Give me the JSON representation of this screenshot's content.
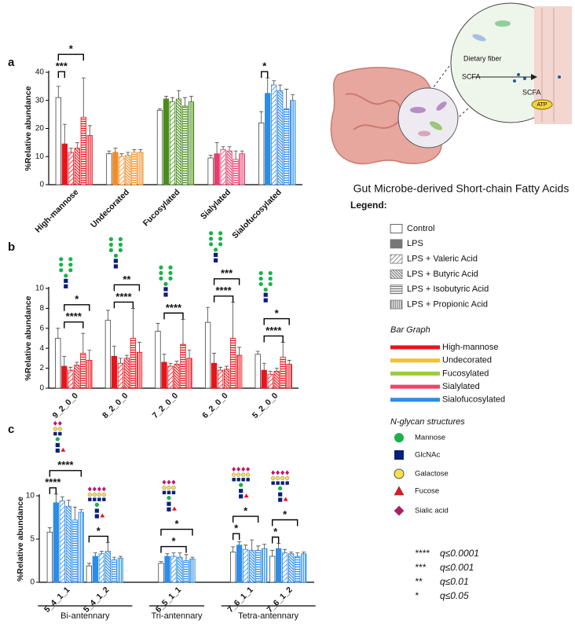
{
  "chart_data": [
    {
      "type": "bar",
      "label": "a",
      "ylabel": "%Relative abundance",
      "categories": [
        "High-mannose",
        "Undecorated",
        "Fucosylated",
        "Sialylated",
        "Sialofucosylated"
      ],
      "colors": [
        "#e8141c",
        "#f28c28",
        "#4a8c1c",
        "#e83c6c",
        "#2d8ce8"
      ],
      "ylim": [
        0,
        40
      ],
      "yticks": [
        0,
        10,
        20,
        30,
        40
      ],
      "series": [
        {
          "name": "Control",
          "pattern": "none",
          "values": [
            31,
            11,
            26.5,
            9.5,
            22
          ],
          "errors": [
            4,
            1,
            0.5,
            1,
            4
          ]
        },
        {
          "name": "LPS",
          "pattern": "solid",
          "values": [
            14.5,
            11.5,
            30.5,
            11,
            32.5
          ],
          "errors": [
            7,
            1.5,
            1,
            4,
            5.5
          ]
        },
        {
          "name": "LPS + Valeric Acid",
          "pattern": "diagonal-light",
          "values": [
            11.5,
            10,
            29.5,
            12.5,
            35.5
          ],
          "errors": [
            1.5,
            1,
            1.5,
            1,
            1.5
          ]
        },
        {
          "name": "LPS + Butyric Acid",
          "pattern": "diagonal",
          "values": [
            13,
            10.5,
            30.5,
            12,
            33.5
          ],
          "errors": [
            2,
            1,
            3,
            1.5,
            2
          ]
        },
        {
          "name": "LPS + Isobutyric Acid",
          "pattern": "horizontal",
          "values": [
            24,
            11.5,
            28,
            9,
            27
          ],
          "errors": [
            14,
            1,
            3,
            3,
            7
          ]
        },
        {
          "name": "LPS + Propionic Acid",
          "pattern": "vertical",
          "values": [
            17.5,
            11.5,
            29.5,
            11,
            30
          ],
          "errors": [
            3.5,
            1,
            2,
            1,
            2
          ]
        }
      ],
      "significance": [
        {
          "label": "***",
          "category": 0,
          "from": 0,
          "to": 1
        },
        {
          "label": "*",
          "category": 0,
          "from": 0,
          "to": 4
        },
        {
          "label": "*",
          "category": 4,
          "from": 0,
          "to": 1
        }
      ]
    },
    {
      "type": "bar",
      "label": "b",
      "ylabel": "%Relative abundance",
      "categories": [
        "9_2_0_0",
        "8_2_0_0",
        "7_2_0_0",
        "6_2_0_0",
        "5_2_0_0"
      ],
      "color": "#e8141c",
      "ylim": [
        0,
        10
      ],
      "yticks": [
        0,
        2,
        4,
        6,
        8,
        10
      ],
      "series": [
        {
          "pattern": "none",
          "values": [
            5.0,
            6.8,
            5.7,
            6.6,
            3.4
          ],
          "errors": [
            1,
            1,
            0.8,
            1.5,
            0.3
          ]
        },
        {
          "pattern": "solid",
          "values": [
            2.2,
            3.2,
            2.6,
            2.5,
            1.8
          ],
          "errors": [
            1,
            1,
            0.8,
            1,
            0.7
          ]
        },
        {
          "pattern": "diagonal-light",
          "values": [
            1.8,
            2.5,
            2.2,
            1.8,
            1.4
          ],
          "errors": [
            0.3,
            0.5,
            0.3,
            0.3,
            0.3
          ]
        },
        {
          "pattern": "diagonal",
          "values": [
            2.3,
            3.0,
            2.4,
            1.9,
            1.7
          ],
          "errors": [
            0.3,
            0.3,
            0.3,
            0.3,
            0.3
          ]
        },
        {
          "pattern": "horizontal",
          "values": [
            3.5,
            5.0,
            4.4,
            5.0,
            3.1
          ],
          "errors": [
            2,
            3,
            2.5,
            3.6,
            1.5
          ]
        },
        {
          "pattern": "vertical",
          "values": [
            2.8,
            3.6,
            3.0,
            3.3,
            2.4
          ],
          "errors": [
            1,
            1,
            0.8,
            0.8,
            0.4
          ]
        }
      ],
      "significance": [
        {
          "label": "****",
          "category": 0,
          "from": 1,
          "to": 4
        },
        {
          "label": "*",
          "category": 0,
          "from": 1,
          "to": 5
        },
        {
          "label": "****",
          "category": 1,
          "from": 1,
          "to": 4
        },
        {
          "label": "**",
          "category": 1,
          "from": 1,
          "to": 5
        },
        {
          "label": "****",
          "category": 2,
          "from": 1,
          "to": 4
        },
        {
          "label": "****",
          "category": 3,
          "from": 1,
          "to": 4
        },
        {
          "label": "***",
          "category": 3,
          "from": 1,
          "to": 5
        },
        {
          "label": "****",
          "category": 4,
          "from": 1,
          "to": 4
        },
        {
          "label": "*",
          "category": 4,
          "from": 1,
          "to": 5
        }
      ]
    },
    {
      "type": "bar",
      "label": "c",
      "ylabel": "%Relative abundance",
      "categories": [
        "5_4_1_1",
        "5_4_1_2",
        "6_5_1_1",
        "7_6_1_1",
        "7_6_1_2"
      ],
      "color": "#2d8ce8",
      "ylim": [
        0,
        10
      ],
      "yticks": [
        0,
        5,
        10
      ],
      "groups": [
        {
          "label": "Bi-antennary",
          "categories": [
            0,
            1
          ]
        },
        {
          "label": "Tri-antennary",
          "categories": [
            2
          ]
        },
        {
          "label": "Tetra-antennary",
          "categories": [
            3,
            4
          ]
        }
      ],
      "series": [
        {
          "pattern": "none",
          "values": [
            5.8,
            1.9,
            2.2,
            3.5,
            3.0
          ],
          "errors": [
            0.5,
            0.3,
            0.2,
            0.6,
            0.7
          ]
        },
        {
          "pattern": "solid",
          "values": [
            9.2,
            3.0,
            3.0,
            4.3,
            3.9
          ],
          "errors": [
            1,
            0.4,
            0.3,
            0.4,
            0.6
          ]
        },
        {
          "pattern": "diagonal-light",
          "values": [
            9.4,
            3.3,
            3.0,
            3.8,
            3.4
          ],
          "errors": [
            0.5,
            0.3,
            0.4,
            0.5,
            0.4
          ]
        },
        {
          "pattern": "diagonal",
          "values": [
            8.8,
            3.6,
            2.9,
            3.7,
            3.3
          ],
          "errors": [
            0.7,
            1,
            0.5,
            1.2,
            0.2
          ]
        },
        {
          "pattern": "horizontal",
          "values": [
            7.2,
            2.6,
            2.5,
            3.7,
            3.0
          ],
          "errors": [
            1.5,
            0.3,
            0.7,
            0.5,
            0.4
          ]
        },
        {
          "pattern": "vertical",
          "values": [
            8.1,
            2.8,
            2.7,
            3.9,
            3.3
          ],
          "errors": [
            0.3,
            0.2,
            0.2,
            0.5,
            0.2
          ]
        }
      ],
      "significance": [
        {
          "label": "****",
          "category": 0,
          "from": 0,
          "to": 1
        },
        {
          "label": "****",
          "category": 0,
          "from": 0,
          "to": 5
        },
        {
          "label": "*",
          "category": 1,
          "from": 0,
          "to": 3
        },
        {
          "label": "*",
          "category": 2,
          "from": 0,
          "to": 4
        },
        {
          "label": "*",
          "category": 2,
          "from": 0,
          "to": 5
        },
        {
          "label": "*",
          "category": 3,
          "from": 0,
          "to": 1
        },
        {
          "label": "*",
          "category": 3,
          "from": 0,
          "to": 4
        },
        {
          "label": "*",
          "category": 4,
          "from": 0,
          "to": 1
        },
        {
          "label": "*",
          "category": 4,
          "from": 0,
          "to": 4
        }
      ]
    }
  ],
  "illustration": {
    "caption": "Gut Microbe-derived Short-chain Fatty Acids",
    "dietary_fiber": "Dietary fiber",
    "scfa_lumen": "SCFA",
    "scfa_cell": "SCFA",
    "atp": "ATP"
  },
  "legend": {
    "title": "Legend:",
    "swatch_color": "#777777"
  },
  "bar_graph_legend": {
    "title": "Bar Graph",
    "entries": [
      {
        "name": "High-mannose",
        "color": "#e8141c"
      },
      {
        "name": "Undecorated",
        "color": "#f2c12e"
      },
      {
        "name": "Fucosylated",
        "color": "#9ccc3c"
      },
      {
        "name": "Sialylated",
        "color": "#ee4466"
      },
      {
        "name": "Sialofucosylated",
        "color": "#2d8ce8"
      }
    ]
  },
  "glycan_legend": {
    "title": "N-glycan structures",
    "entries": [
      "Mannose",
      "GlcNAc",
      "Galactose",
      "Fucose",
      "Sialic acid"
    ]
  },
  "significance_key": [
    {
      "stars": "****",
      "label": "q≤0.0001"
    },
    {
      "stars": "***",
      "label": "q≤0.001"
    },
    {
      "stars": "**",
      "label": "q≤0.01"
    },
    {
      "stars": "*",
      "label": "q≤0.05"
    }
  ]
}
